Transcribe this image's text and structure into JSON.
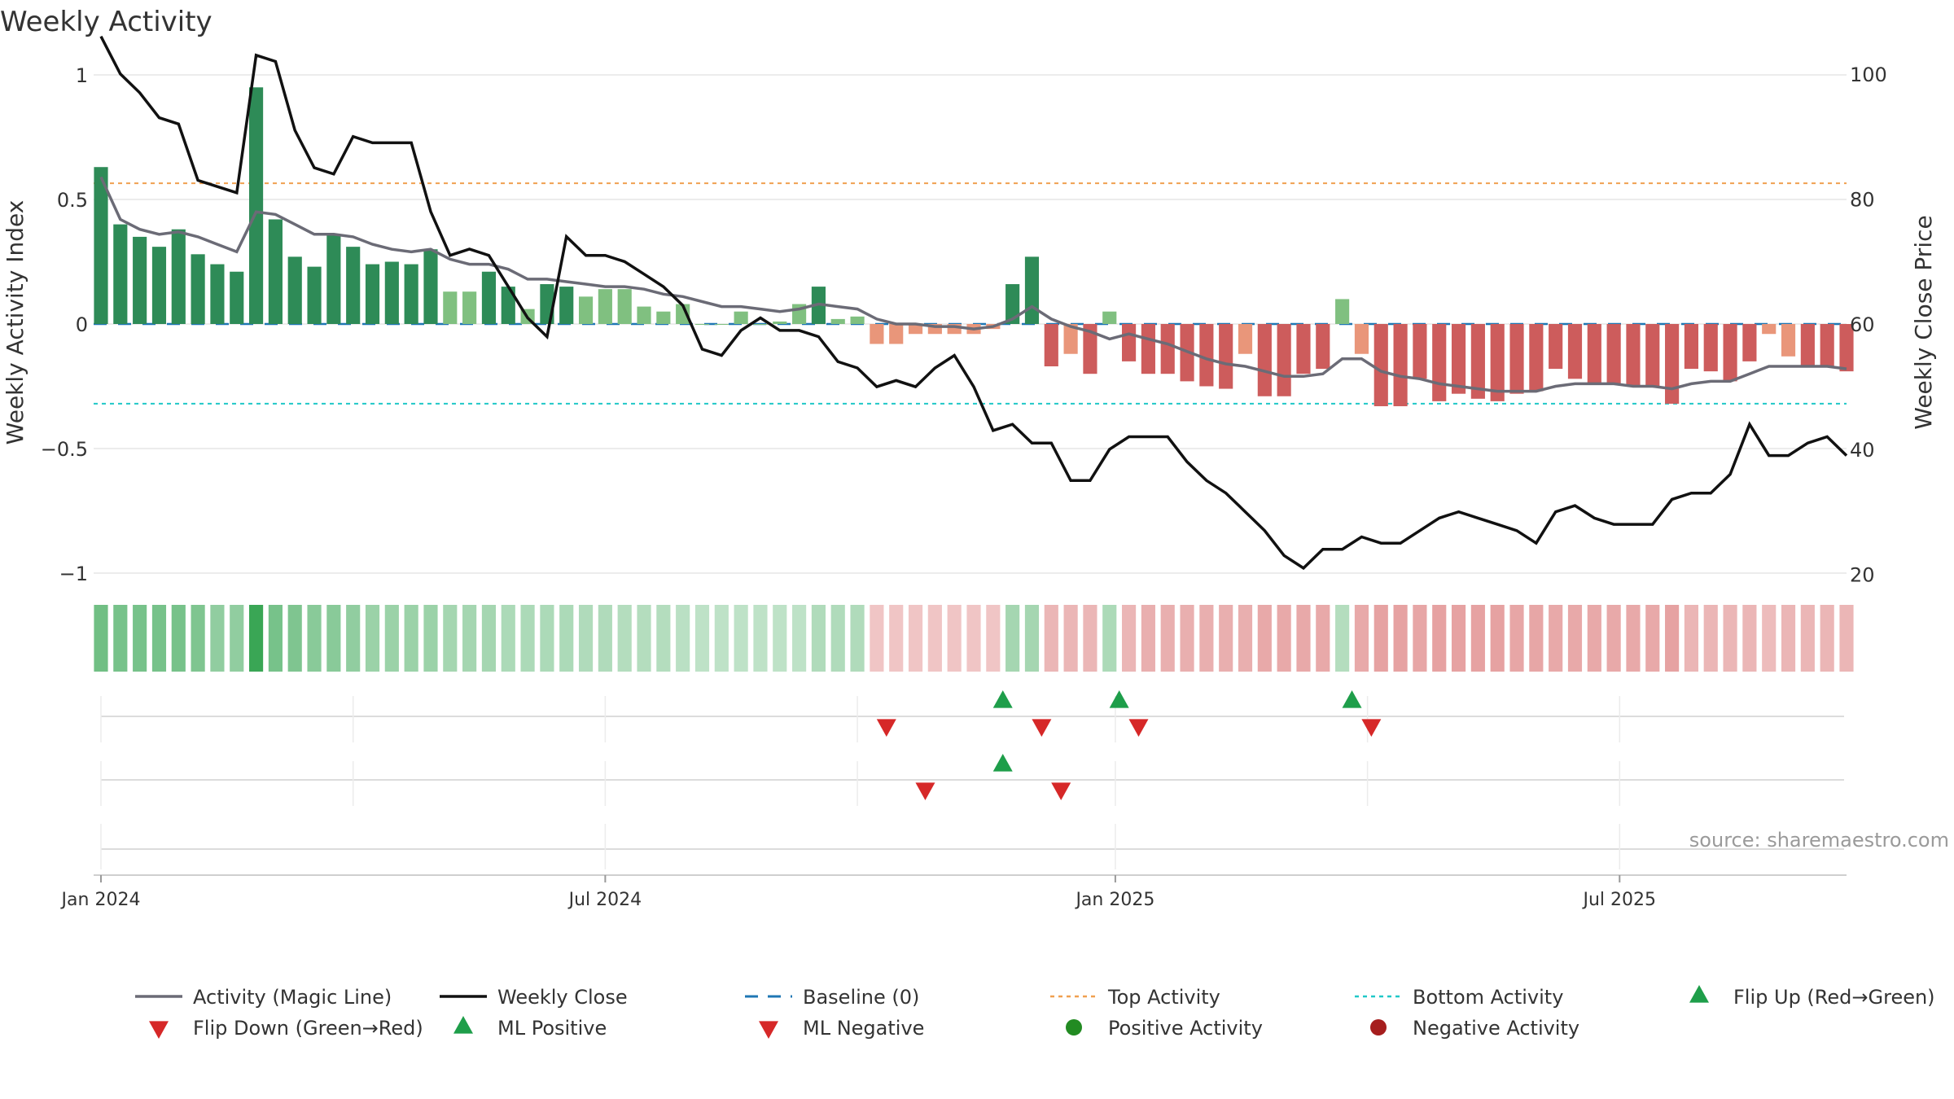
{
  "chart_data": {
    "type": "bar",
    "title": "Weekly Activity",
    "ylabel_left": "Weekly Activity Index",
    "ylabel_right": "Weekly Close Price",
    "ylim_left": [
      -1,
      1
    ],
    "ylim_right": [
      15,
      110
    ],
    "yticks_left": [
      {
        "v": 1,
        "label": "1"
      },
      {
        "v": 0.5,
        "label": "0.5"
      },
      {
        "v": 0,
        "label": "0"
      },
      {
        "v": -0.5,
        "label": "−0.5"
      },
      {
        "v": -1,
        "label": "−1"
      }
    ],
    "yticks_right": [
      {
        "v": 100,
        "label": "100"
      },
      {
        "v": 80,
        "label": "80"
      },
      {
        "v": 60,
        "label": "60"
      },
      {
        "v": 40,
        "label": "40"
      },
      {
        "v": 20,
        "label": "20"
      }
    ],
    "x_ticks": [
      {
        "week": 0,
        "label": "Jan 2024"
      },
      {
        "week": 26,
        "label": "Jul 2024"
      },
      {
        "week": 52.3,
        "label": "Jan 2025"
      },
      {
        "week": 78.3,
        "label": "Jul 2025"
      }
    ],
    "week_count": 91,
    "reference_lines": {
      "top_activity": 0.565,
      "bottom_activity": -0.32,
      "baseline": 0
    },
    "bar_colors": {
      "strong_positive": "#2e8b57",
      "weak_positive": "#80c080",
      "strong_negative": "#cd5c5c",
      "weak_negative": "#e9967a"
    },
    "colors": {
      "magic_line": "#6b6b76",
      "close": "#111111",
      "baseline": "#1f77b4",
      "top": "#f0a050",
      "bottom": "#20c8c8",
      "flip_up": "#1e9e4a",
      "flip_down": "#d62828",
      "heat_positive": "#3aa655",
      "heat_negative": "#d05050"
    },
    "series": [
      {
        "name": "Weekly Activity Index",
        "values": [
          0.63,
          0.4,
          0.35,
          0.31,
          0.38,
          0.28,
          0.24,
          0.21,
          0.95,
          0.42,
          0.27,
          0.23,
          0.36,
          0.31,
          0.24,
          0.25,
          0.24,
          0.3,
          0.13,
          0.13,
          0.21,
          0.15,
          0.06,
          0.16,
          0.15,
          0.11,
          0.14,
          0.14,
          0.07,
          0.05,
          0.08,
          0.0,
          0.0,
          0.05,
          0.0,
          0.01,
          0.08,
          0.15,
          0.02,
          0.03,
          -0.08,
          -0.08,
          -0.04,
          -0.04,
          -0.04,
          -0.04,
          -0.02,
          0.16,
          0.27,
          -0.17,
          -0.12,
          -0.2,
          0.05,
          -0.15,
          -0.2,
          -0.2,
          -0.23,
          -0.25,
          -0.26,
          -0.12,
          -0.29,
          -0.29,
          -0.2,
          -0.18,
          0.1,
          -0.12,
          -0.33,
          -0.33,
          -0.22,
          -0.31,
          -0.28,
          -0.3,
          -0.31,
          -0.28,
          -0.27,
          -0.18,
          -0.22,
          -0.24,
          -0.24,
          -0.25,
          -0.25,
          -0.32,
          -0.18,
          -0.19,
          -0.23,
          -0.15,
          -0.04,
          -0.13,
          -0.17,
          -0.17,
          -0.19
        ]
      },
      {
        "name": "Activity (Magic Line)",
        "values": [
          0.59,
          0.42,
          0.38,
          0.36,
          0.37,
          0.35,
          0.32,
          0.29,
          0.45,
          0.44,
          0.4,
          0.36,
          0.36,
          0.35,
          0.32,
          0.3,
          0.29,
          0.3,
          0.26,
          0.24,
          0.24,
          0.22,
          0.18,
          0.18,
          0.17,
          0.16,
          0.15,
          0.15,
          0.14,
          0.12,
          0.11,
          0.09,
          0.07,
          0.07,
          0.06,
          0.05,
          0.06,
          0.08,
          0.07,
          0.06,
          0.02,
          0.0,
          0.0,
          -0.01,
          -0.01,
          -0.02,
          -0.01,
          0.02,
          0.07,
          0.02,
          -0.01,
          -0.03,
          -0.06,
          -0.04,
          -0.06,
          -0.08,
          -0.11,
          -0.14,
          -0.16,
          -0.17,
          -0.19,
          -0.21,
          -0.21,
          -0.2,
          -0.14,
          -0.14,
          -0.19,
          -0.21,
          -0.22,
          -0.24,
          -0.25,
          -0.26,
          -0.27,
          -0.27,
          -0.27,
          -0.25,
          -0.24,
          -0.24,
          -0.24,
          -0.25,
          -0.25,
          -0.26,
          -0.24,
          -0.23,
          -0.23,
          -0.2,
          -0.17,
          -0.17,
          -0.17,
          -0.17,
          -0.18
        ]
      },
      {
        "name": "Weekly Close",
        "values": [
          106,
          100,
          97,
          93,
          92,
          83,
          82,
          81,
          103,
          102,
          91,
          85,
          84,
          90,
          89,
          89,
          89,
          78,
          71,
          72,
          71,
          66,
          61,
          58,
          74,
          71,
          71,
          70,
          68,
          66,
          63,
          56,
          55,
          59,
          61,
          59,
          59,
          58,
          54,
          53,
          50,
          51,
          50,
          53,
          55,
          50,
          43,
          44,
          41,
          41,
          35,
          35,
          40,
          42,
          42,
          42,
          38,
          35,
          33,
          30,
          27,
          23,
          21,
          24,
          24,
          26,
          25,
          25,
          27,
          29,
          30,
          29,
          28,
          27,
          25,
          30,
          31,
          29,
          28,
          28,
          28,
          32,
          33,
          33,
          36,
          44,
          39,
          39,
          41,
          42,
          39
        ]
      }
    ],
    "heat_strip": [
      0.63,
      0.6,
      0.6,
      0.6,
      0.6,
      0.55,
      0.45,
      0.45,
      0.95,
      0.6,
      0.55,
      0.5,
      0.5,
      0.45,
      0.4,
      0.4,
      0.4,
      0.4,
      0.35,
      0.35,
      0.35,
      0.3,
      0.3,
      0.3,
      0.3,
      0.28,
      0.28,
      0.25,
      0.25,
      0.25,
      0.22,
      0.2,
      0.2,
      0.2,
      0.2,
      0.2,
      0.2,
      0.28,
      0.28,
      0.28,
      -0.2,
      -0.2,
      -0.2,
      -0.2,
      -0.2,
      -0.2,
      -0.2,
      0.35,
      0.35,
      -0.3,
      -0.3,
      -0.3,
      0.3,
      -0.3,
      -0.35,
      -0.35,
      -0.35,
      -0.35,
      -0.35,
      -0.35,
      -0.38,
      -0.38,
      -0.38,
      -0.38,
      0.25,
      -0.38,
      -0.42,
      -0.42,
      -0.4,
      -0.42,
      -0.42,
      -0.42,
      -0.42,
      -0.4,
      -0.4,
      -0.38,
      -0.38,
      -0.38,
      -0.38,
      -0.38,
      -0.38,
      -0.42,
      -0.3,
      -0.3,
      -0.3,
      -0.3,
      -0.25,
      -0.3,
      -0.3,
      -0.3,
      -0.3
    ],
    "signals": {
      "flip_up_weeks": [
        46.5,
        52.5,
        64.5
      ],
      "flip_down_weeks": [
        40.5,
        48.5,
        53.5,
        65.5
      ],
      "ml_positive_weeks": [
        46.5
      ],
      "ml_negative_weeks": [
        42.5,
        49.5
      ]
    },
    "source": "source: sharemaestro.com",
    "legend": [
      {
        "key": "magic",
        "label": "Activity (Magic Line)"
      },
      {
        "key": "close",
        "label": "Weekly Close"
      },
      {
        "key": "baseline",
        "label": "Baseline (0)"
      },
      {
        "key": "top",
        "label": "Top Activity"
      },
      {
        "key": "bottom",
        "label": "Bottom Activity"
      },
      {
        "key": "flipup",
        "label": "Flip Up (Red→Green)"
      },
      {
        "key": "flipdown",
        "label": "Flip Down (Green→Red)"
      },
      {
        "key": "mlpos",
        "label": "ML Positive"
      },
      {
        "key": "mlneg",
        "label": "ML Negative"
      },
      {
        "key": "posact",
        "label": "Positive Activity"
      },
      {
        "key": "negact",
        "label": "Negative Activity"
      }
    ]
  }
}
